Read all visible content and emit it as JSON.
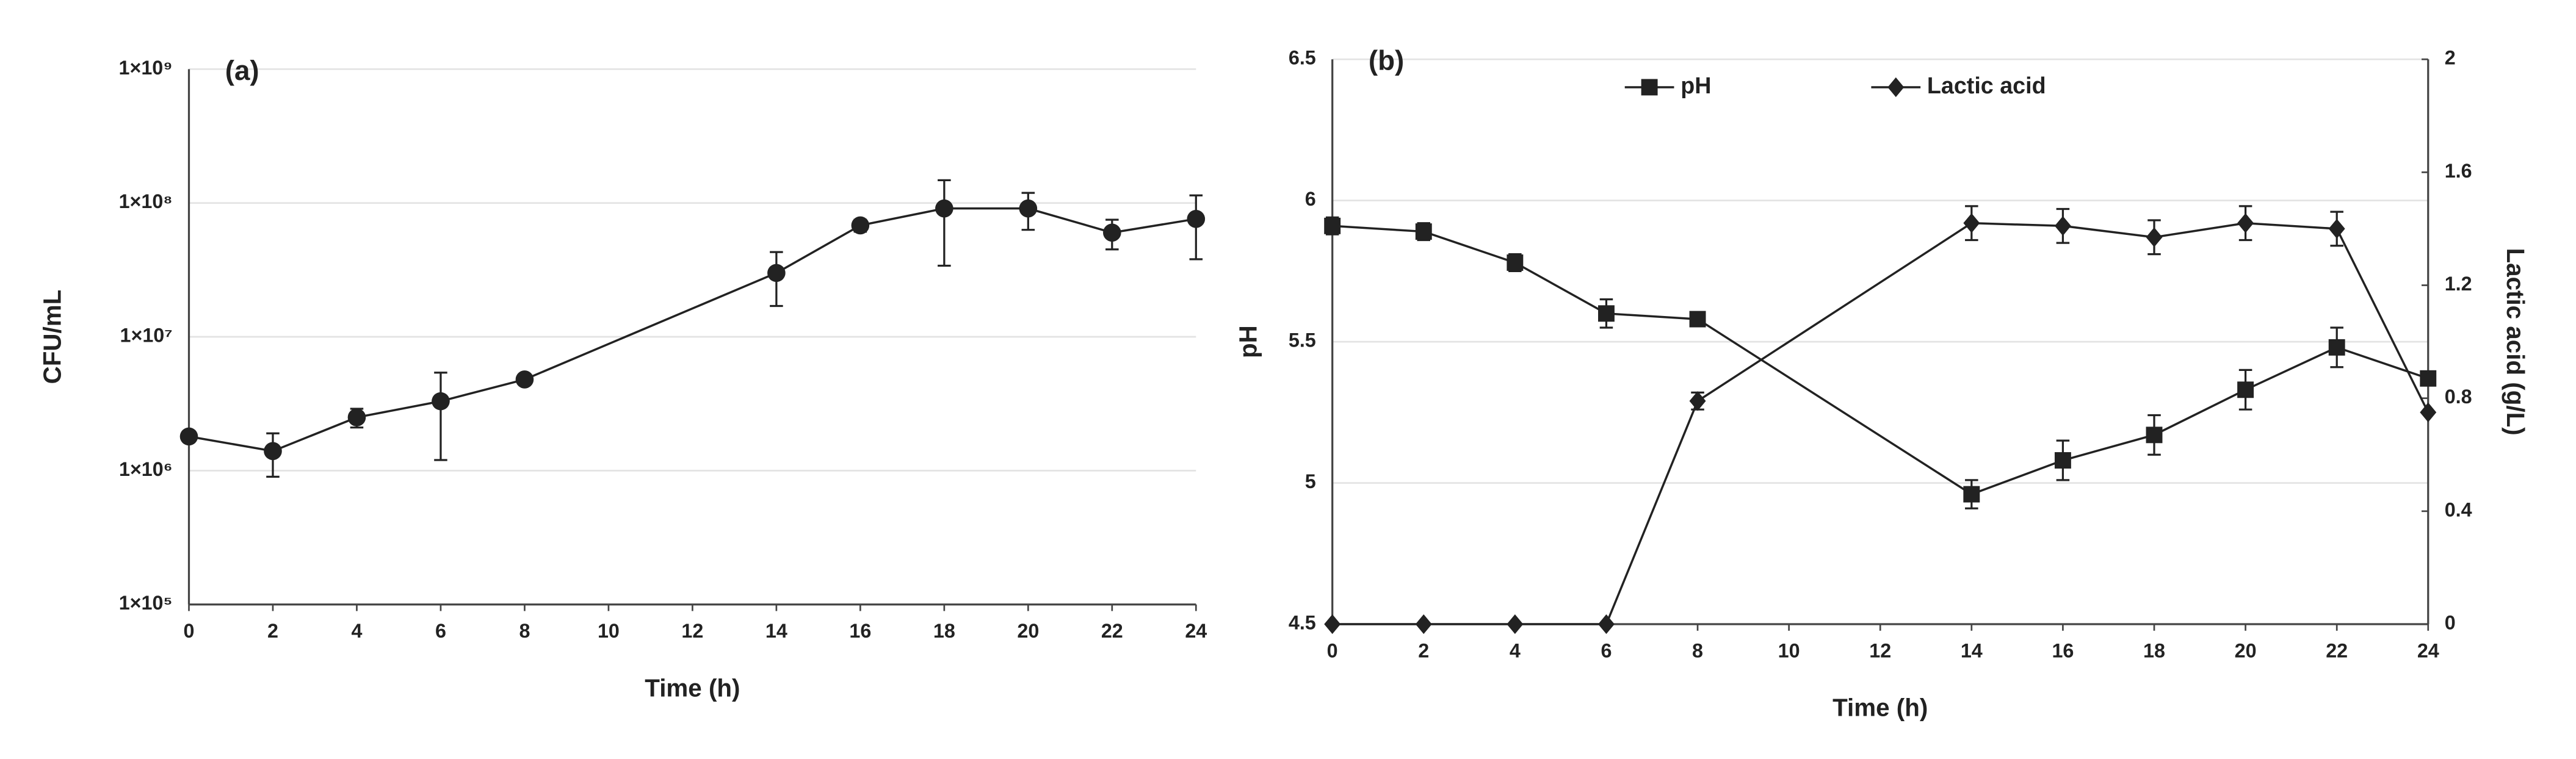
{
  "chart_data": [
    {
      "type": "line",
      "panel_label": "(a)",
      "x_label": "Time (h)",
      "y_label": "CFU/mL",
      "y_scale": "log",
      "grid": true,
      "color": "#222222",
      "marker": "circle",
      "x": [
        0,
        2,
        4,
        6,
        8,
        14,
        16,
        18,
        20,
        22,
        24
      ],
      "values": [
        1800000,
        1400000,
        2500000,
        3300000,
        4800000,
        30000000,
        68000000,
        91000000,
        91000000,
        60000000,
        76000000
      ],
      "errors": [
        0,
        500000,
        400000,
        2100000,
        0,
        13000000,
        7000000,
        57000000,
        28000000,
        15000000,
        38000000
      ],
      "xlim": [
        0,
        24
      ],
      "xticks": [
        0,
        2,
        4,
        6,
        8,
        10,
        12,
        14,
        16,
        18,
        20,
        22,
        24
      ],
      "ylim": [
        100000,
        1000000000
      ],
      "yticks": [
        {
          "value": 100000,
          "label": "1×10⁵"
        },
        {
          "value": 1000000,
          "label": "1×10⁶"
        },
        {
          "value": 10000000,
          "label": "1×10⁷"
        },
        {
          "value": 100000000,
          "label": "1×10⁸"
        },
        {
          "value": 1000000000,
          "label": "1×10⁹"
        }
      ]
    },
    {
      "type": "line",
      "panel_label": "(b)",
      "x_label": "Time (h)",
      "y_label": "pH",
      "y2_label": "Lactic acid (g/L)",
      "grid": true,
      "x": [
        0,
        2,
        4,
        6,
        8,
        14,
        16,
        18,
        20,
        22,
        24
      ],
      "series": [
        {
          "name": "pH",
          "color": "#222222",
          "marker": "square",
          "values": [
            5.91,
            5.89,
            5.78,
            5.6,
            5.58,
            4.96,
            5.08,
            5.17,
            5.33,
            5.48,
            5.37
          ],
          "errors": [
            0.03,
            0.03,
            0.03,
            0.05,
            0.01,
            0.05,
            0.07,
            0.07,
            0.07,
            0.07,
            0
          ]
        },
        {
          "name": "Lactic acid",
          "color": "#222222",
          "marker": "diamond",
          "axis": "y2",
          "values": [
            0,
            0,
            0,
            0,
            0.79,
            1.42,
            1.41,
            1.37,
            1.42,
            1.4,
            0.75
          ],
          "errors": [
            0,
            0,
            0,
            0,
            0.03,
            0.06,
            0.06,
            0.06,
            0.06,
            0.06,
            0
          ]
        }
      ],
      "xlim": [
        0,
        24
      ],
      "xticks": [
        0,
        2,
        4,
        6,
        8,
        10,
        12,
        14,
        16,
        18,
        20,
        22,
        24
      ],
      "ylim": [
        4.5,
        6.5
      ],
      "yticks": [
        4.5,
        5,
        5.5,
        6,
        6.5
      ],
      "y2lim": [
        0,
        2
      ],
      "y2ticks": [
        0,
        0.4,
        0.8,
        1.2,
        1.6,
        2
      ]
    }
  ]
}
